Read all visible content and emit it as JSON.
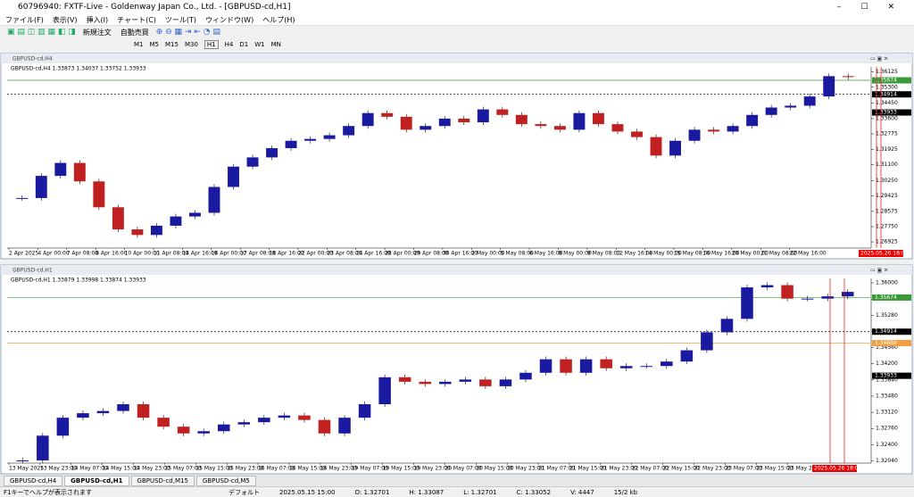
{
  "title_bar": {
    "title": "60796940: FXTF-Live - Goldenway Japan Co., Ltd. - [GBPUSD-cd,H1]"
  },
  "menu": [
    "ファイル(F)",
    "表示(V)",
    "挿入(I)",
    "チャート(C)",
    "ツール(T)",
    "ウィンドウ(W)",
    "ヘルプ(H)"
  ],
  "toolbar": {
    "order": "新規注文",
    "auto": "自動売買",
    "timeframes": [
      "M1",
      "M5",
      "M15",
      "M30",
      "H1",
      "H4",
      "D1",
      "W1",
      "MN"
    ]
  },
  "windows": [
    {
      "title": "GBPUSD-cd,H4",
      "header": "GBPUSD-cd,H4  1.33873 1.34037 1.33752 1.33933",
      "ylim": [
        1.2659,
        1.364
      ],
      "yticks": [
        {
          "value": 1.36125,
          "label": "1.36125"
        },
        {
          "value": 1.353,
          "label": "1.35300"
        },
        {
          "value": 1.3445,
          "label": "1.34450"
        },
        {
          "value": 1.336,
          "label": "1.33600"
        },
        {
          "value": 1.32775,
          "label": "1.32775"
        },
        {
          "value": 1.31925,
          "label": "1.31925"
        },
        {
          "value": 1.311,
          "label": "1.31100"
        },
        {
          "value": 1.3025,
          "label": "1.30250"
        },
        {
          "value": 1.29425,
          "label": "1.29425"
        },
        {
          "value": 1.28575,
          "label": "1.28575"
        },
        {
          "value": 1.2775,
          "label": "1.27750"
        },
        {
          "value": 1.26925,
          "label": "1.26925"
        }
      ],
      "levels": [
        {
          "value": 1.35674,
          "label": "1.35674",
          "color": "#3a9a3a",
          "style": "solid"
        },
        {
          "value": 1.34914,
          "label": "1.34914",
          "color": "#000000",
          "style": "dash"
        },
        {
          "value": 1.33933,
          "label": "1.33933",
          "color": "#000000",
          "style": "none"
        }
      ],
      "dates": [
        "2 Apr 2025",
        "4 Apr 00:00",
        "7 Apr 08:00",
        "8 Apr 16:00",
        "10 Apr 00:00",
        "11 Apr 08:00",
        "14 Apr 16:00",
        "16 Apr 00:00",
        "17 Apr 08:00",
        "18 Apr 16:00",
        "22 Apr 00:00",
        "23 Apr 08:00",
        "24 Apr 16:00",
        "28 Apr 00:00",
        "29 Apr 08:00",
        "30 Apr 16:00",
        "2 May 00:00",
        "5 May 08:00",
        "6 May 16:00",
        "8 May 00:00",
        "9 May 08:00",
        "12 May 16:00",
        "14 May 00:00",
        "15 May 08:00",
        "16 May 16:00",
        "20 May 00:00",
        "21 May 08:00",
        "22 May 16:00"
      ],
      "cursor_label": "2025.05.26 18:00",
      "closes": [
        1.293,
        1.305,
        1.312,
        1.302,
        1.288,
        1.276,
        1.273,
        1.278,
        1.283,
        1.285,
        1.299,
        1.31,
        1.315,
        1.32,
        1.324,
        1.325,
        1.327,
        1.332,
        1.339,
        1.337,
        1.33,
        1.332,
        1.336,
        1.334,
        1.341,
        1.338,
        1.333,
        1.332,
        1.33,
        1.339,
        1.333,
        1.329,
        1.326,
        1.316,
        1.324,
        1.33,
        1.329,
        1.332,
        1.338,
        1.342,
        1.343,
        1.348,
        1.359,
        1.3585
      ]
    },
    {
      "title": "GBPUSD-cd,H1",
      "header": "GBPUSD-cd,H1  1.33879 1.33998 1.33874 1.33933",
      "ylim": [
        1.3199,
        1.361
      ],
      "yticks": [
        {
          "value": 1.36,
          "label": "1.36000"
        },
        {
          "value": 1.3564,
          "label": "1.35640"
        },
        {
          "value": 1.3528,
          "label": "1.35280"
        },
        {
          "value": 1.3492,
          "label": "1.34920"
        },
        {
          "value": 1.3456,
          "label": "1.34560"
        },
        {
          "value": 1.342,
          "label": "1.34200"
        },
        {
          "value": 1.3384,
          "label": "1.33840"
        },
        {
          "value": 1.3348,
          "label": "1.33480"
        },
        {
          "value": 1.3312,
          "label": "1.33120"
        },
        {
          "value": 1.3276,
          "label": "1.32760"
        },
        {
          "value": 1.324,
          "label": "1.32400"
        },
        {
          "value": 1.3204,
          "label": "1.32040"
        }
      ],
      "levels": [
        {
          "value": 1.35674,
          "label": "1.35674",
          "color": "#3a9a3a",
          "style": "solid"
        },
        {
          "value": 1.34914,
          "label": "1.34914",
          "color": "#000000",
          "style": "dash"
        },
        {
          "value": 1.3466,
          "label": "1.34660",
          "color": "#f0a040",
          "style": "solid"
        },
        {
          "value": 1.33933,
          "label": "1.33933",
          "color": "#000000",
          "style": "none"
        }
      ],
      "dates": [
        "13 May 2025",
        "13 May 23:00",
        "14 May 07:00",
        "14 May 15:00",
        "14 May 23:00",
        "15 May 07:00",
        "15 May 15:00",
        "15 May 23:00",
        "16 May 07:00",
        "16 May 15:00",
        "16 May 23:00",
        "19 May 07:00",
        "19 May 15:00",
        "19 May 23:00",
        "20 May 07:00",
        "20 May 15:00",
        "20 May 23:00",
        "21 May 07:00",
        "21 May 15:00",
        "21 May 23:00",
        "22 May 07:00",
        "22 May 15:00",
        "22 May 23:00",
        "23 May 07:00",
        "23 May 15:00",
        "23 May 23:00"
      ],
      "cursor_label": "2025.05.26 18:00",
      "closes": [
        1.3205,
        1.326,
        1.33,
        1.331,
        1.3315,
        1.333,
        1.33,
        1.328,
        1.3265,
        1.327,
        1.3285,
        1.329,
        1.33,
        1.3305,
        1.3295,
        1.3265,
        1.33,
        1.333,
        1.339,
        1.338,
        1.3375,
        1.338,
        1.3385,
        1.337,
        1.3385,
        1.34,
        1.343,
        1.34,
        1.343,
        1.341,
        1.3415,
        1.3415,
        1.3425,
        1.345,
        1.349,
        1.352,
        1.359,
        1.3595,
        1.3565,
        1.3565,
        1.357,
        1.358
      ]
    }
  ],
  "tabs": [
    "GBPUSD-cd,H4",
    "GBPUSD-cd,H1",
    "GBPUSD-cd,M15",
    "GBPUSD-cd,M5"
  ],
  "status": [
    "F1キーでヘルプが表示されます",
    "デフォルト",
    "2025.05.15 15:00",
    "O: 1.32701",
    "H: 1.33087",
    "L: 1.32701",
    "C: 1.33052",
    "V: 4447",
    "15/2 kb"
  ]
}
